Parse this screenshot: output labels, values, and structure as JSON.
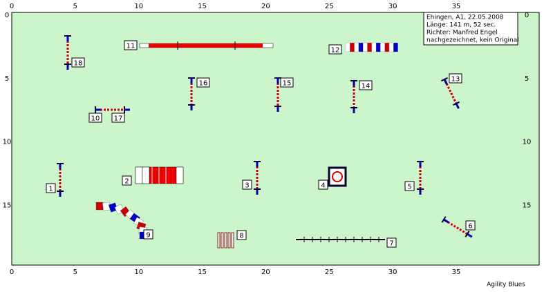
{
  "axes": {
    "x_ticks": [
      0,
      5,
      10,
      15,
      20,
      25,
      30,
      35
    ],
    "y_ticks": [
      0,
      5,
      10,
      15
    ]
  },
  "info": {
    "lines": [
      "Ehingen, A1, 22.05.2008",
      "Länge: 141 m, 52 sec.",
      "Richter: Manfred Engel",
      "nachgezeichnet, kein Original"
    ]
  },
  "obstacles": [
    {
      "label": "1"
    },
    {
      "label": "2"
    },
    {
      "label": "3"
    },
    {
      "label": "4"
    },
    {
      "label": "5"
    },
    {
      "label": "6"
    },
    {
      "label": "7"
    },
    {
      "label": "8"
    },
    {
      "label": "9"
    },
    {
      "label": "10"
    },
    {
      "label": "11"
    },
    {
      "label": "12"
    },
    {
      "label": "13"
    },
    {
      "label": "14"
    },
    {
      "label": "15"
    },
    {
      "label": "16"
    },
    {
      "label": "17"
    },
    {
      "label": "18"
    }
  ],
  "footer": "Agility Blues"
}
